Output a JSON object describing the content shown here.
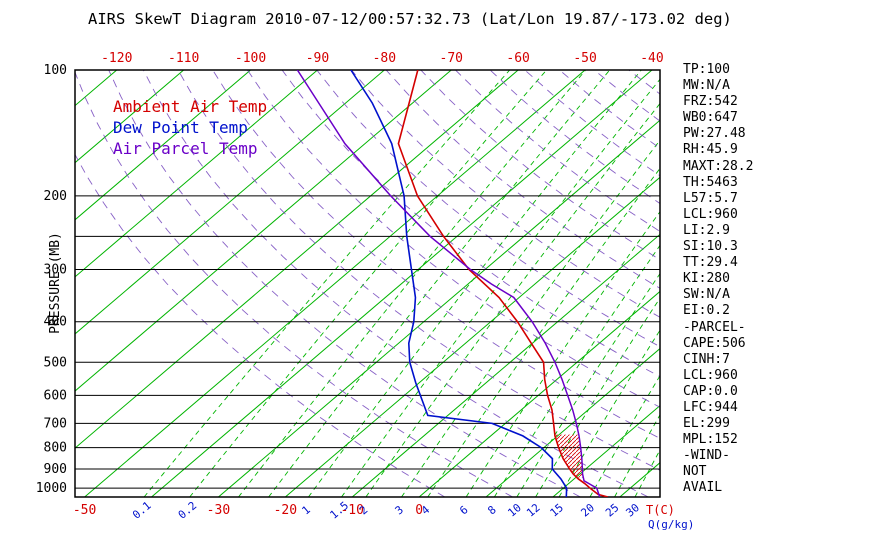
{
  "title": "AIRS SkewT Diagram 2010-07-12/00:57:32.73 (Lat/Lon 19.87/-173.02 deg)",
  "legend": {
    "items": [
      {
        "label": "Ambient Air Temp",
        "color": "#d40000"
      },
      {
        "label": "Dew Point Temp",
        "color": "#0011cc"
      },
      {
        "label": "Air Parcel Temp",
        "color": "#6a00c8"
      }
    ]
  },
  "stats": {
    "lines": [
      "TP:100",
      "MW:N/A",
      "FRZ:542",
      "WB0:647",
      "PW:27.48",
      "RH:45.9",
      "MAXT:28.2",
      "TH:5463",
      "L57:5.7",
      "LCL:960",
      "LI:2.9",
      "SI:10.3",
      "TT:29.4",
      "KI:280",
      "SW:N/A",
      "EI:0.2",
      "-PARCEL-",
      "CAPE:506",
      "CINH:7",
      "LCL:960",
      "CAP:0.0",
      "LFC:944",
      "EL:299",
      "MPL:152",
      "-WIND-",
      "NOT",
      "AVAIL"
    ]
  },
  "axes": {
    "pressure_label": "PRESSURE (MB)",
    "pressure_ticks": [
      100,
      200,
      300,
      400,
      500,
      600,
      700,
      800,
      900,
      1000
    ],
    "top_temp_labels": [
      -120,
      -110,
      -100,
      -90,
      -80,
      -70,
      -60,
      -50,
      -40
    ],
    "bottom_temp_labels": [
      -50,
      -30,
      -20,
      -10,
      0
    ],
    "mixing_ratio_labels": [
      0.1,
      0.2,
      1,
      1.5,
      2,
      3,
      4,
      6,
      8,
      10,
      12,
      15,
      20,
      25,
      30
    ],
    "temp_unit": "T(C)",
    "mixr_unit": "Q(g/kg)"
  },
  "colors": {
    "temp": "#d40000",
    "dew": "#0011cc",
    "parcel": "#6a00c8",
    "isotherm": "#00b400",
    "adiabat": "#7a4fc0",
    "frame": "#000000"
  },
  "chart_data": {
    "type": "line",
    "subtype": "skewT-logP",
    "title": "AIRS SkewT Diagram 2010-07-12/00:57:32.73 (Lat/Lon 19.87/-173.02 deg)",
    "xlabel": "T(C)",
    "ylabel": "PRESSURE (MB)",
    "x_unit_secondary": "Q(g/kg)",
    "pressure_range": [
      100,
      1050
    ],
    "y_scale": "log-inverted",
    "grid": {
      "isotherm_range": [
        -130,
        40
      ],
      "isotherm_step": 10,
      "dry_adiabat_theta": [
        0,
        170
      ],
      "pressure_lines": [
        200,
        250,
        300,
        400,
        500,
        600,
        700,
        800,
        900,
        1000
      ],
      "mixing_ratio_lines": [
        0.1,
        0.2,
        0.4,
        0.6,
        1,
        1.5,
        2,
        3,
        4,
        6,
        8,
        10,
        12,
        15,
        20,
        25,
        30
      ]
    },
    "series": [
      {
        "name": "Ambient Air Temp",
        "color": "#d40000",
        "width": 1.6,
        "points_format": "[pressure_mb, temp_C]",
        "points": [
          [
            1050,
            28.2
          ],
          [
            1035,
            26.3
          ],
          [
            1000,
            24.0
          ],
          [
            975,
            22.4
          ],
          [
            950,
            20.6
          ],
          [
            925,
            19.0
          ],
          [
            900,
            17.6
          ],
          [
            850,
            14.8
          ],
          [
            800,
            12.2
          ],
          [
            750,
            9.6
          ],
          [
            700,
            7.2
          ],
          [
            650,
            4.6
          ],
          [
            600,
            1.4
          ],
          [
            550,
            -1.8
          ],
          [
            500,
            -5.0
          ],
          [
            450,
            -10.2
          ],
          [
            400,
            -16.0
          ],
          [
            350,
            -23.0
          ],
          [
            300,
            -32.4
          ],
          [
            250,
            -42.0
          ],
          [
            200,
            -53.0
          ],
          [
            150,
            -65.0
          ],
          [
            120,
            -70.5
          ],
          [
            100,
            -75.0
          ]
        ]
      },
      {
        "name": "Dew Point Temp",
        "color": "#0011cc",
        "width": 1.6,
        "points_format": "[pressure_mb, temp_C]",
        "points": [
          [
            1050,
            22.0
          ],
          [
            1000,
            20.5
          ],
          [
            950,
            18.0
          ],
          [
            900,
            15.0
          ],
          [
            850,
            13.2
          ],
          [
            800,
            9.6
          ],
          [
            750,
            4.8
          ],
          [
            700,
            -2.0
          ],
          [
            670,
            -13.0
          ],
          [
            560,
            -20.5
          ],
          [
            500,
            -25.0
          ],
          [
            450,
            -28.5
          ],
          [
            400,
            -31.5
          ],
          [
            350,
            -35.5
          ],
          [
            300,
            -41.0
          ],
          [
            250,
            -47.5
          ],
          [
            200,
            -55.0
          ],
          [
            150,
            -66.0
          ],
          [
            120,
            -76.0
          ],
          [
            100,
            -85.0
          ]
        ]
      },
      {
        "name": "Air Parcel Temp",
        "color": "#6a00c8",
        "width": 1.5,
        "points_format": "[pressure_mb, temp_C]",
        "points": [
          [
            1050,
            27.0
          ],
          [
            1000,
            25.0
          ],
          [
            960,
            21.8
          ],
          [
            925,
            20.4
          ],
          [
            900,
            19.5
          ],
          [
            850,
            17.6
          ],
          [
            800,
            15.5
          ],
          [
            750,
            13.2
          ],
          [
            700,
            10.6
          ],
          [
            650,
            7.7
          ],
          [
            600,
            4.4
          ],
          [
            550,
            0.8
          ],
          [
            500,
            -3.3
          ],
          [
            450,
            -8.1
          ],
          [
            400,
            -13.8
          ],
          [
            350,
            -20.8
          ],
          [
            325,
            -26.5
          ],
          [
            300,
            -32.2
          ],
          [
            250,
            -44.0
          ],
          [
            200,
            -57.0
          ],
          [
            150,
            -73.0
          ],
          [
            120,
            -84.0
          ],
          [
            100,
            -93.0
          ]
        ]
      }
    ],
    "cape_hatch": {
      "left": "Ambient Air Temp",
      "right": "Air Parcel Temp",
      "pressure_range": [
        944,
        745
      ]
    }
  }
}
